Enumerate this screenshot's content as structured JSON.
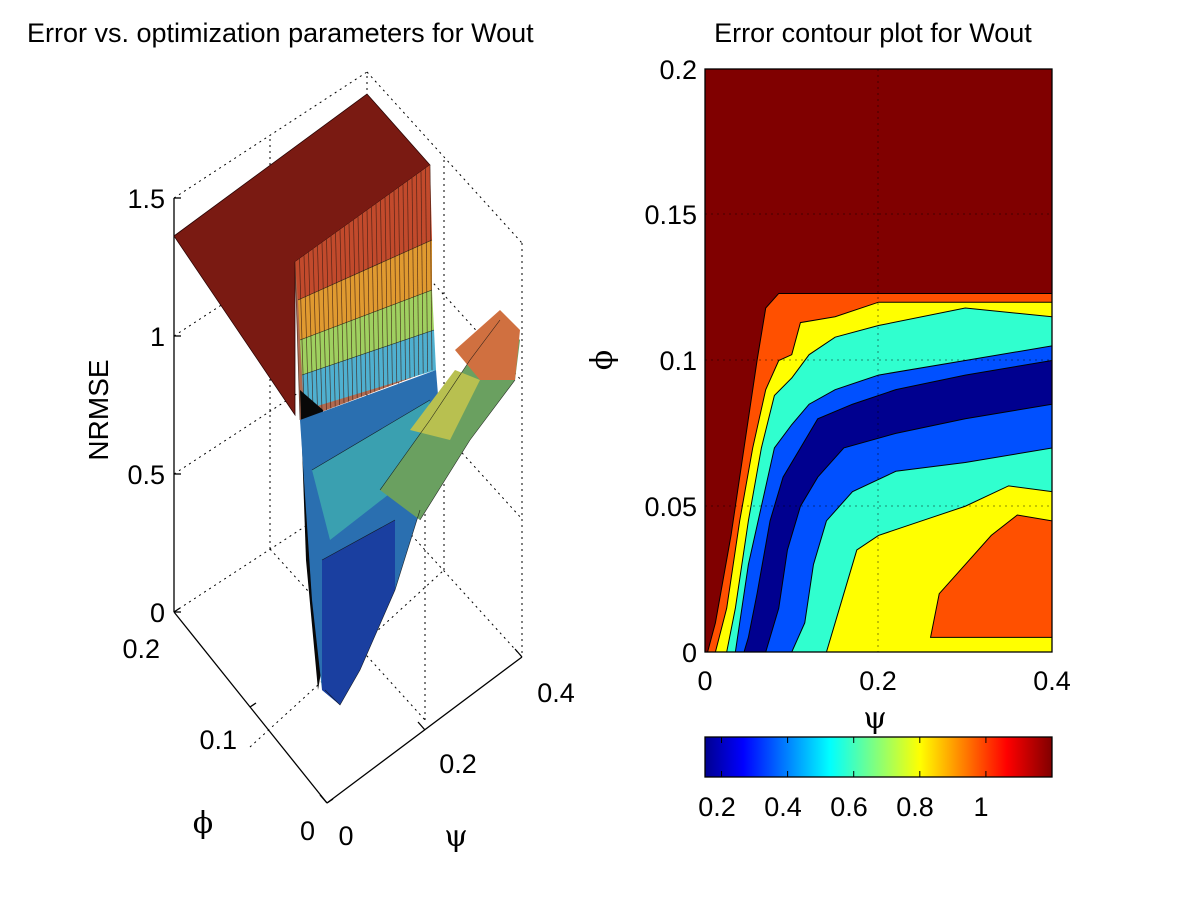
{
  "chart_data": [
    {
      "type": "surface",
      "title": "Error vs. optimization parameters for Wout",
      "xlabel": "ψ",
      "ylabel": "ϕ",
      "zlabel": "NRMSE",
      "xlim": [
        0,
        0.4
      ],
      "ylim": [
        0,
        0.2
      ],
      "zlim": [
        0,
        1.5
      ],
      "x_ticks": [
        "0",
        "0.2",
        "0.4"
      ],
      "y_ticks": [
        "0",
        "0.1",
        "0.2"
      ],
      "z_ticks": [
        "0",
        "0.5",
        "1",
        "1.5"
      ],
      "grid": true,
      "colormap": "jet",
      "description_values": {
        "psi": [
          0,
          0.05,
          0.1,
          0.15,
          0.2,
          0.25,
          0.3,
          0.35,
          0.4
        ],
        "phi_boundary_max": 0.125,
        "plateau_value": 1.2,
        "min_value": 0.15
      }
    },
    {
      "type": "contour",
      "title": "Error contour plot for Wout",
      "xlabel": "ψ",
      "ylabel": "ϕ",
      "xlim": [
        0,
        0.4
      ],
      "ylim": [
        0,
        0.2
      ],
      "x_ticks": [
        "0",
        "0.2",
        "0.4"
      ],
      "y_ticks": [
        "0",
        "0.05",
        "0.1",
        "0.15",
        "0.2"
      ],
      "colorbar": {
        "range": [
          0.15,
          1.2
        ],
        "ticks": [
          "0.2",
          "0.4",
          "0.6",
          "0.8",
          "1"
        ]
      },
      "grid": true,
      "colormap": "jet",
      "levels": [
        0.2,
        0.4,
        0.6,
        0.8,
        1.0,
        1.2
      ],
      "level_colors": [
        "#00008F",
        "#0050FF",
        "#30FFCF",
        "#FFFF00",
        "#FF5000",
        "#800000"
      ]
    }
  ]
}
